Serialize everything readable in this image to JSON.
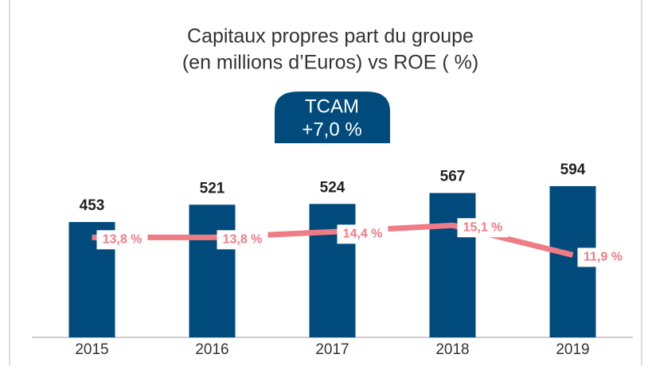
{
  "chart_data": {
    "type": "bar_line",
    "title": "Capitaux propres part du groupe",
    "subtitle": "(en millions d’Euros) vs ROE ( %)",
    "annotation": {
      "title": "TCAM",
      "text": "+7,0 %"
    },
    "categories": [
      "2015",
      "2016",
      "2017",
      "2018",
      "2019"
    ],
    "series": [
      {
        "name": "Capitaux propres",
        "type": "bar",
        "color": "#004b7c",
        "values": [
          453,
          521,
          524,
          567,
          594
        ]
      },
      {
        "name": "ROE",
        "type": "line",
        "axis": "y2",
        "color": "#ef7b85",
        "values": [
          13.8,
          13.8,
          14.4,
          15.1,
          11.9
        ],
        "value_labels": [
          "13,8 %",
          "13,8 %",
          "14,4 %",
          "15,1 %",
          "11,9 %"
        ]
      }
    ],
    "ylim": [
      0,
      800
    ],
    "y2lim": [
      3,
      25
    ]
  }
}
